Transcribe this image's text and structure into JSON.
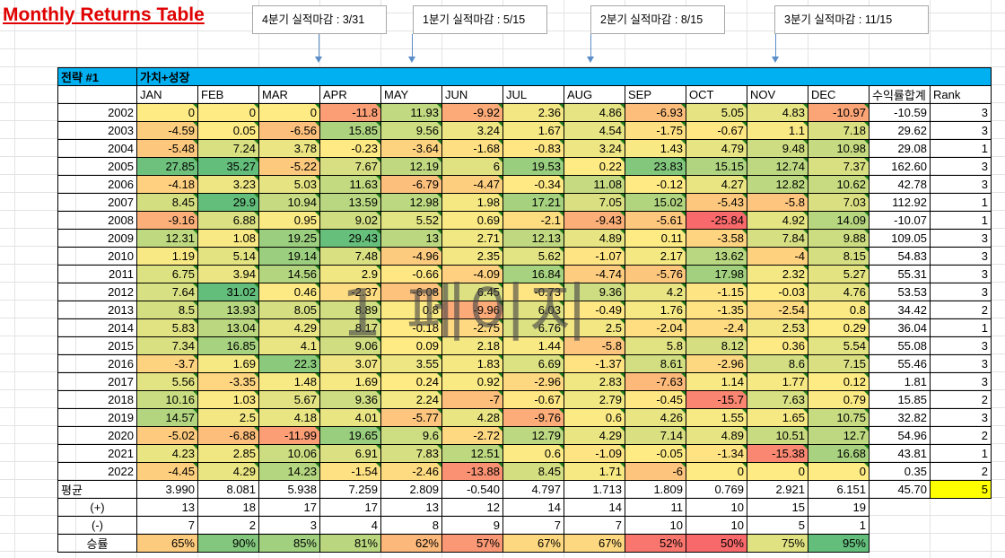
{
  "title": "Monthly Returns Table",
  "callouts": [
    "4분기 실적마감 : 3/31",
    "1분기 실적마감 : 5/15",
    "2분기 실적마감 : 8/15",
    "3분기 실적마감 : 11/15"
  ],
  "strategy": {
    "label": "전략 #1",
    "name": "가치+성장"
  },
  "headers": [
    "JAN",
    "FEB",
    "MAR",
    "APR",
    "MAY",
    "JUN",
    "JUL",
    "AUG",
    "SEP",
    "OCT",
    "NOV",
    "DEC",
    "수익률합계",
    "Rank"
  ],
  "rows": [
    {
      "year": "2002",
      "vals": [
        "0",
        "0",
        "0",
        "-11.8",
        "11.93",
        "-9.92",
        "2.36",
        "4.86",
        "-6.93",
        "5.05",
        "4.83",
        "-10.97"
      ],
      "sum": "-10.59",
      "rank": "3"
    },
    {
      "year": "2003",
      "vals": [
        "-4.59",
        "0.05",
        "-6.56",
        "15.85",
        "9.56",
        "3.24",
        "1.67",
        "4.54",
        "-1.75",
        "-0.67",
        "1.1",
        "7.18"
      ],
      "sum": "29.62",
      "rank": "3"
    },
    {
      "year": "2004",
      "vals": [
        "-5.48",
        "7.24",
        "3.78",
        "-0.23",
        "-3.64",
        "-1.68",
        "-0.83",
        "3.24",
        "1.43",
        "4.79",
        "9.48",
        "10.98"
      ],
      "sum": "29.08",
      "rank": "1"
    },
    {
      "year": "2005",
      "vals": [
        "27.85",
        "35.27",
        "-5.22",
        "7.67",
        "12.19",
        "6",
        "19.53",
        "0.22",
        "23.83",
        "15.15",
        "12.74",
        "7.37"
      ],
      "sum": "162.60",
      "rank": "3"
    },
    {
      "year": "2006",
      "vals": [
        "-4.18",
        "3.23",
        "5.03",
        "11.63",
        "-6.79",
        "-4.47",
        "-0.34",
        "11.08",
        "-0.12",
        "4.27",
        "12.82",
        "10.62"
      ],
      "sum": "42.78",
      "rank": "3"
    },
    {
      "year": "2007",
      "vals": [
        "8.45",
        "29.9",
        "10.94",
        "13.59",
        "12.98",
        "1.98",
        "17.21",
        "7.05",
        "15.02",
        "-5.43",
        "-5.8",
        "7.03"
      ],
      "sum": "112.92",
      "rank": "1"
    },
    {
      "year": "2008",
      "vals": [
        "-9.16",
        "6.88",
        "0.95",
        "9.02",
        "5.52",
        "0.69",
        "-2.1",
        "-9.43",
        "-5.61",
        "-25.84",
        "4.92",
        "14.09"
      ],
      "sum": "-10.07",
      "rank": "1"
    },
    {
      "year": "2009",
      "vals": [
        "12.31",
        "1.08",
        "19.25",
        "29.43",
        "13",
        "2.71",
        "12.13",
        "4.89",
        "0.11",
        "-3.58",
        "7.84",
        "9.88"
      ],
      "sum": "109.05",
      "rank": "3"
    },
    {
      "year": "2010",
      "vals": [
        "1.19",
        "5.14",
        "19.14",
        "7.48",
        "-4.96",
        "2.35",
        "5.62",
        "-1.07",
        "2.17",
        "13.62",
        "-4",
        "8.15"
      ],
      "sum": "54.83",
      "rank": "3"
    },
    {
      "year": "2011",
      "vals": [
        "6.75",
        "3.94",
        "14.56",
        "2.9",
        "-0.66",
        "-4.09",
        "16.84",
        "-4.74",
        "-5.76",
        "17.98",
        "2.32",
        "5.27"
      ],
      "sum": "55.31",
      "rank": "3"
    },
    {
      "year": "2012",
      "vals": [
        "7.64",
        "31.02",
        "0.46",
        "-2.37",
        "-6.08",
        "6.45",
        "-0.73",
        "9.36",
        "4.2",
        "-1.15",
        "-0.03",
        "4.76"
      ],
      "sum": "53.53",
      "rank": "3"
    },
    {
      "year": "2013",
      "vals": [
        "8.5",
        "13.93",
        "8.05",
        "8.89",
        "0.8",
        "-9.96",
        "6.03",
        "-0.49",
        "1.76",
        "-1.35",
        "-2.54",
        "0.8"
      ],
      "sum": "34.42",
      "rank": "2"
    },
    {
      "year": "2014",
      "vals": [
        "5.83",
        "13.04",
        "4.29",
        "8.17",
        "-0.18",
        "-2.75",
        "6.76",
        "2.5",
        "-2.04",
        "-2.4",
        "2.53",
        "0.29"
      ],
      "sum": "36.04",
      "rank": "1"
    },
    {
      "year": "2015",
      "vals": [
        "7.34",
        "16.85",
        "4.1",
        "9.06",
        "0.09",
        "2.18",
        "1.44",
        "-5.8",
        "5.8",
        "8.12",
        "0.36",
        "5.54"
      ],
      "sum": "55.08",
      "rank": "3"
    },
    {
      "year": "2016",
      "vals": [
        "-3.7",
        "1.69",
        "22.3",
        "3.07",
        "3.55",
        "1.83",
        "6.69",
        "-1.37",
        "8.61",
        "-2.96",
        "8.6",
        "7.15"
      ],
      "sum": "55.46",
      "rank": "3"
    },
    {
      "year": "2017",
      "vals": [
        "5.56",
        "-3.35",
        "1.48",
        "1.69",
        "0.24",
        "0.92",
        "-2.96",
        "2.83",
        "-7.63",
        "1.14",
        "1.77",
        "0.12"
      ],
      "sum": "1.81",
      "rank": "3"
    },
    {
      "year": "2018",
      "vals": [
        "10.16",
        "1.03",
        "5.67",
        "9.36",
        "2.24",
        "-7",
        "-0.67",
        "2.79",
        "-0.45",
        "-15.7",
        "7.63",
        "0.79"
      ],
      "sum": "15.85",
      "rank": "2"
    },
    {
      "year": "2019",
      "vals": [
        "14.57",
        "2.5",
        "4.18",
        "4.01",
        "-5.77",
        "4.28",
        "-9.76",
        "0.6",
        "4.26",
        "1.55",
        "1.65",
        "10.75"
      ],
      "sum": "32.82",
      "rank": "3"
    },
    {
      "year": "2020",
      "vals": [
        "-5.02",
        "-6.88",
        "-11.99",
        "19.65",
        "9.6",
        "-2.72",
        "12.79",
        "4.29",
        "7.14",
        "4.89",
        "10.51",
        "12.7"
      ],
      "sum": "54.96",
      "rank": "2"
    },
    {
      "year": "2021",
      "vals": [
        "4.23",
        "2.85",
        "10.06",
        "6.91",
        "7.83",
        "12.51",
        "0.6",
        "-1.09",
        "-0.05",
        "-1.34",
        "-15.38",
        "16.68"
      ],
      "sum": "43.81",
      "rank": "1"
    },
    {
      "year": "2022",
      "vals": [
        "-4.45",
        "4.29",
        "14.23",
        "-1.54",
        "-2.46",
        "-13.88",
        "8.45",
        "1.71",
        "-6",
        "0",
        "0",
        "0"
      ],
      "sum": "0.35",
      "rank": "2"
    }
  ],
  "avg": {
    "label": "평균",
    "vals": [
      "3.990",
      "8.081",
      "5.938",
      "7.259",
      "2.809",
      "-0.540",
      "4.797",
      "1.713",
      "1.809",
      "0.769",
      "2.921",
      "6.151"
    ],
    "sum": "45.70",
    "rank": "5"
  },
  "pos": {
    "label": "(+)",
    "vals": [
      "13",
      "18",
      "17",
      "17",
      "13",
      "12",
      "14",
      "14",
      "11",
      "10",
      "15",
      "19"
    ]
  },
  "neg": {
    "label": "(-)",
    "vals": [
      "7",
      "2",
      "3",
      "4",
      "8",
      "9",
      "7",
      "7",
      "10",
      "10",
      "5",
      "1"
    ]
  },
  "win": {
    "label": "승률",
    "vals": [
      "65%",
      "90%",
      "85%",
      "81%",
      "62%",
      "57%",
      "67%",
      "67%",
      "52%",
      "50%",
      "75%",
      "95%"
    ]
  },
  "watermark": "1 페이지",
  "colors": {
    "header": "#00b0f0",
    "rank_highlight": "#ffff00",
    "title": "#e00000"
  }
}
